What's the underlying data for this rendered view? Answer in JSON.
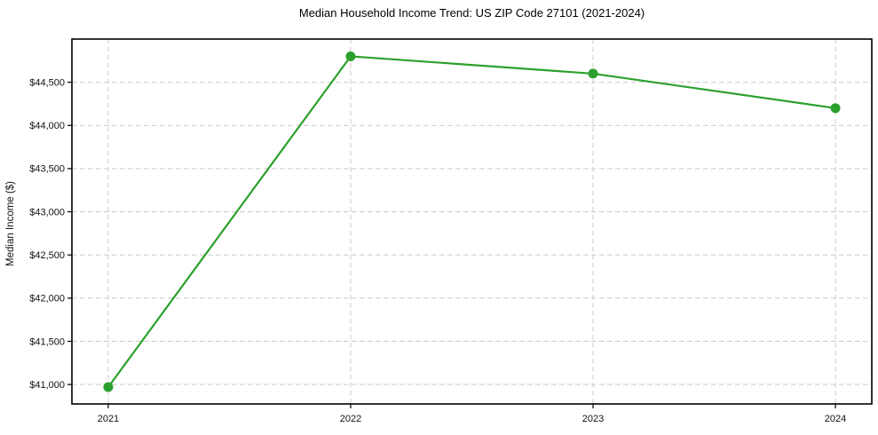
{
  "chart_data": {
    "type": "line",
    "title": "Median Household Income Trend: US ZIP Code 27101 (2021-2024)",
    "xlabel": "",
    "ylabel": "Median Income ($)",
    "x": [
      2021,
      2022,
      2023,
      2024
    ],
    "xtick_labels": [
      "2021",
      "2022",
      "2023",
      "2024"
    ],
    "values": [
      40970,
      44800,
      44600,
      44200
    ],
    "yticks": [
      41000,
      41500,
      42000,
      42500,
      43000,
      43500,
      44000,
      44500
    ],
    "ytick_labels": [
      "$41,000",
      "$41,500",
      "$42,000",
      "$42,500",
      "$43,000",
      "$43,500",
      "$44,000",
      "$44,500"
    ],
    "xlim": [
      2020.85,
      2024.15
    ],
    "ylim": [
      40775,
      45000
    ],
    "grid": true,
    "grid_style": "dashed",
    "legend": "none",
    "colors": {
      "line": "#2ca02c",
      "marker": "#2ca02c",
      "grid": "#cfcfcf",
      "axis": "#000000",
      "background": "#ffffff"
    }
  }
}
